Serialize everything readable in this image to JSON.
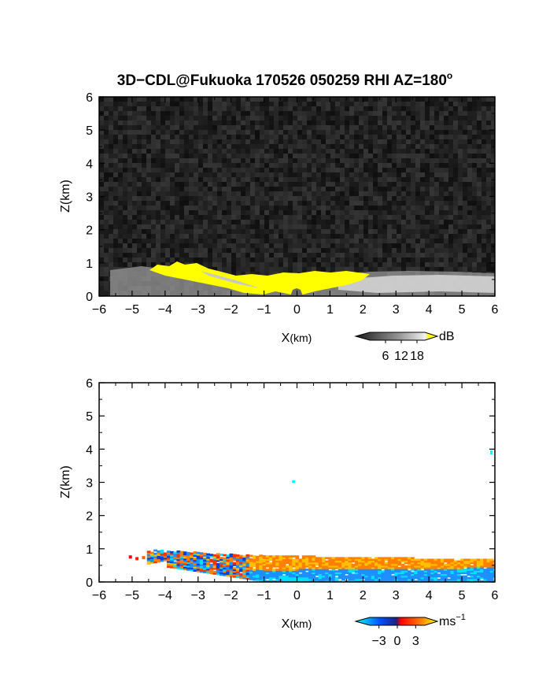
{
  "title": "3D−CDL@Fukuoka 170526 050259 RHI AZ=180",
  "title_superscript": "o",
  "chart_data": [
    {
      "type": "heatmap",
      "panel": "reflectivity",
      "xlabel": "X",
      "xlabel_unit": "(km)",
      "ylabel": "Z(km)",
      "xlim": [
        -6,
        6
      ],
      "ylim": [
        0,
        6
      ],
      "x_ticks": [
        "−6",
        "−5",
        "−4",
        "−3",
        "−2",
        "−1",
        "0",
        "1",
        "2",
        "3",
        "4",
        "5",
        "6"
      ],
      "y_ticks": [
        "0",
        "1",
        "2",
        "3",
        "4",
        "5",
        "6"
      ],
      "colorbar": {
        "unit": "dB",
        "ticks": [
          "6",
          "12",
          "18"
        ],
        "tick_values": [
          6,
          12,
          18
        ],
        "range": [
          0,
          21
        ],
        "colors": [
          "#101010",
          "#e8e8e8",
          "#ffff00"
        ]
      },
      "features": [
        {
          "name": "saturated echo layer (>18 dB)",
          "x_range": [
            -4.4,
            2.2
          ],
          "z_range": [
            0,
            0.9
          ],
          "color": "#ffff00"
        },
        {
          "name": "weak echo layer",
          "x_range": [
            -5.8,
            6
          ],
          "z_range": [
            0,
            0.7
          ],
          "color": "#d0d0d0"
        }
      ]
    },
    {
      "type": "heatmap",
      "panel": "doppler_velocity",
      "xlabel": "X",
      "xlabel_unit": "(km)",
      "ylabel": "Z(km)",
      "xlim": [
        -6,
        6
      ],
      "ylim": [
        0,
        6
      ],
      "x_ticks": [
        "−6",
        "−5",
        "−4",
        "−3",
        "−2",
        "−1",
        "0",
        "1",
        "2",
        "3",
        "4",
        "5",
        "6"
      ],
      "y_ticks": [
        "0",
        "1",
        "2",
        "3",
        "4",
        "5",
        "6"
      ],
      "colorbar": {
        "unit": "ms",
        "unit_superscript": "−1",
        "ticks": [
          "−3",
          "0",
          "3"
        ],
        "tick_values": [
          -3,
          0,
          3
        ],
        "range": [
          -4.5,
          4.5
        ],
        "colors": [
          "#00ffff",
          "#0050ff",
          "#ff0000",
          "#ff8000",
          "#ffff00"
        ]
      },
      "features": [
        {
          "name": "velocity layer",
          "x_range": [
            -5.1,
            6
          ],
          "z_range": [
            0,
            0.95
          ]
        },
        {
          "name": "isolated echo",
          "x": -0.1,
          "z": 3.0,
          "color": "#00ffff"
        },
        {
          "name": "isolated echo",
          "x": 5.9,
          "z": 3.85,
          "color": "#00ffff"
        }
      ]
    }
  ]
}
